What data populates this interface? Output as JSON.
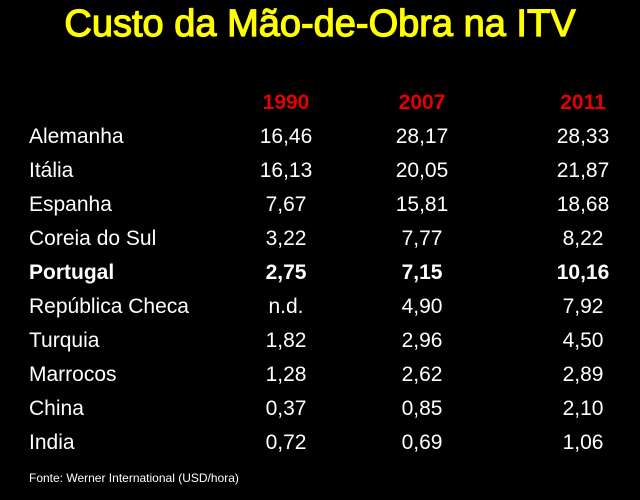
{
  "title": "Custo da Mão-de-Obra na ITV",
  "colors": {
    "background": "#000000",
    "title": "#ffff00",
    "header_years": "#e60000",
    "text": "#ffffff"
  },
  "table": {
    "columns": [
      "1990",
      "2007",
      "2011"
    ],
    "rows": [
      {
        "country": "Alemanha",
        "values": [
          "16,46",
          "28,17",
          "28,33"
        ],
        "bold": false
      },
      {
        "country": "Itália",
        "values": [
          "16,13",
          "20,05",
          "21,87"
        ],
        "bold": false
      },
      {
        "country": "Espanha",
        "values": [
          "7,67",
          "15,81",
          "18,68"
        ],
        "bold": false
      },
      {
        "country": "Coreia do Sul",
        "values": [
          "3,22",
          "7,77",
          "8,22"
        ],
        "bold": false
      },
      {
        "country": "Portugal",
        "values": [
          "2,75",
          "7,15",
          "10,16"
        ],
        "bold": true
      },
      {
        "country": "República Checa",
        "values": [
          "n.d.",
          "4,90",
          "7,92"
        ],
        "bold": false
      },
      {
        "country": "Turquia",
        "values": [
          "1,82",
          "2,96",
          "4,50"
        ],
        "bold": false
      },
      {
        "country": "Marrocos",
        "values": [
          "1,28",
          "2,62",
          "2,89"
        ],
        "bold": false
      },
      {
        "country": "China",
        "values": [
          "0,37",
          "0,85",
          "2,10"
        ],
        "bold": false
      },
      {
        "country": "India",
        "values": [
          "0,72",
          "0,69",
          "1,06"
        ],
        "bold": false
      }
    ]
  },
  "source": "Fonte: Werner International (USD/hora)"
}
